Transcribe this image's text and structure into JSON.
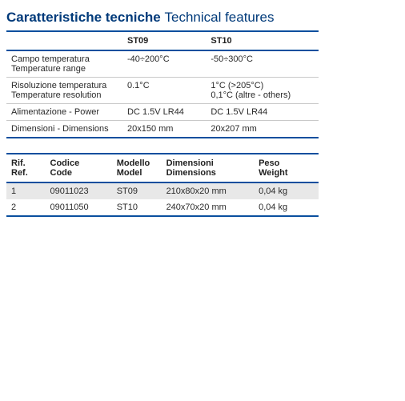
{
  "title": {
    "it": "Caratteristiche tecniche",
    "en": "Technical features"
  },
  "title_color": "#003a7a",
  "border_color": "#0a4f9e",
  "row_alt_bg": "#e8e8e8",
  "specs": {
    "col_headers": [
      "",
      "ST09",
      "ST10"
    ],
    "rows": [
      {
        "label_it": "Campo temperatura",
        "label_en": "Temperature range",
        "st09": "-40÷200°C",
        "st10": "-50÷300°C"
      },
      {
        "label_it": "Risoluzione temperatura",
        "label_en": "Temperature resolution",
        "st09": "0.1°C",
        "st10_line1": "1°C (>205°C)",
        "st10_line2": "0,1°C (altre - others)"
      },
      {
        "label_it": "Alimentazione - Power",
        "label_en": "",
        "st09": "DC 1.5V LR44",
        "st10": "DC 1.5V LR44"
      },
      {
        "label_it": "Dimensioni - Dimensions",
        "label_en": "",
        "st09": "20x150 mm",
        "st10": "20x207 mm"
      }
    ]
  },
  "models": {
    "headers": [
      {
        "it": "Rif.",
        "en": "Ref."
      },
      {
        "it": "Codice",
        "en": "Code"
      },
      {
        "it": "Modello",
        "en": "Model"
      },
      {
        "it": "Dimensioni",
        "en": "Dimensions"
      },
      {
        "it": "Peso",
        "en": "Weight"
      }
    ],
    "rows": [
      {
        "ref": "1",
        "code": "09011023",
        "model": "ST09",
        "dim": "210x80x20 mm",
        "weight": "0,04 kg"
      },
      {
        "ref": "2",
        "code": "09011050",
        "model": "ST10",
        "dim": "240x70x20 mm",
        "weight": "0,04 kg"
      }
    ]
  }
}
